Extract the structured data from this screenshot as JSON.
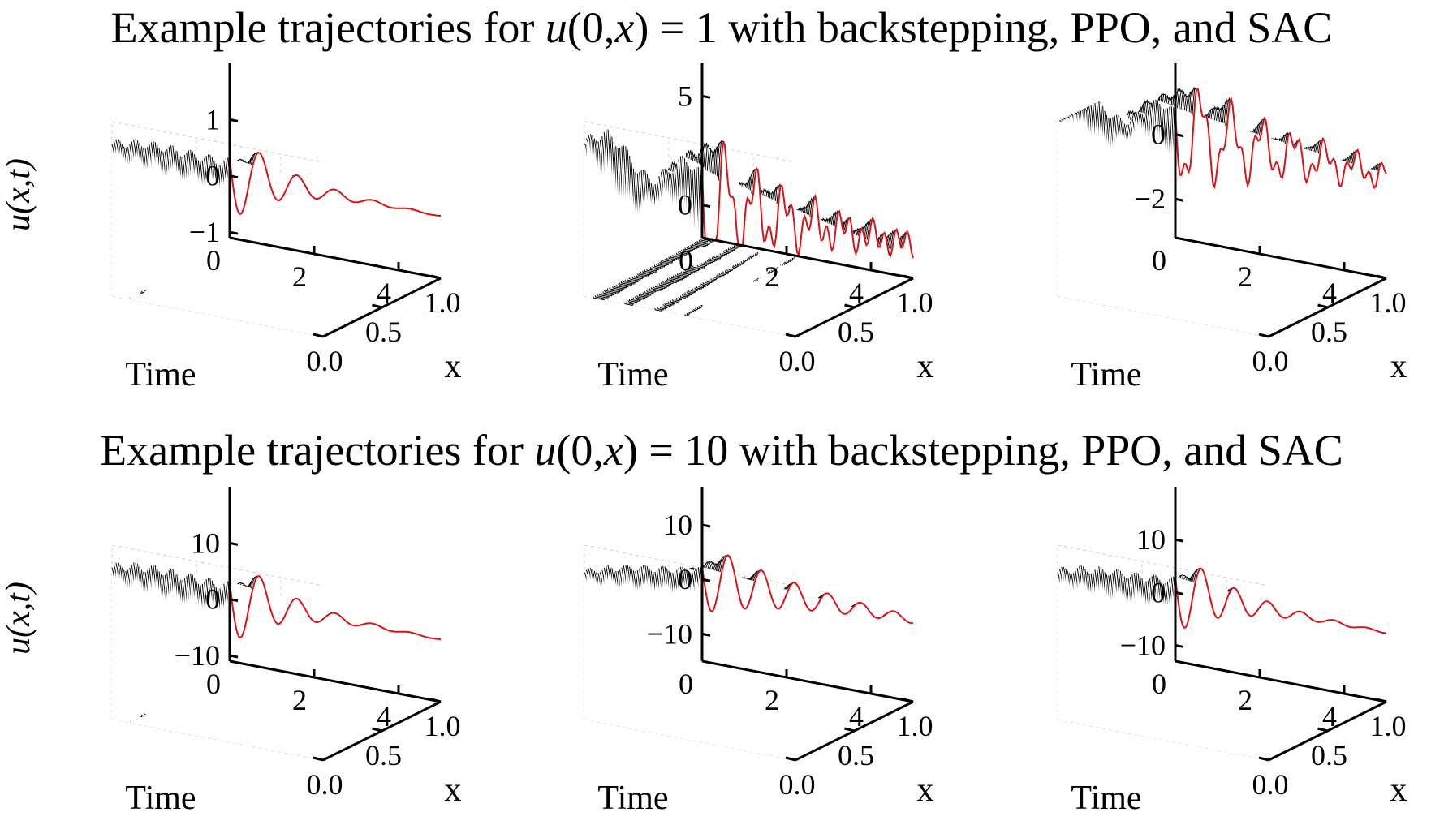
{
  "figure": {
    "row_titles": [
      "Example trajectories for u(0,x) = 1 with backstepping, PPO, and SAC",
      "Example trajectories for u(0,x) = 10 with backstepping, PPO, and SAC"
    ],
    "row_title_parts": [
      {
        "pre": "Example trajectories for ",
        "math": "u",
        "mid": "(0,",
        "math2": "x",
        "post": ") = 1 with backstepping, PPO, and SAC"
      },
      {
        "pre": "Example trajectories for ",
        "math": "u",
        "mid": "(0,",
        "math2": "x",
        "post": ") = 10 with backstepping, PPO, and SAC"
      }
    ]
  },
  "colors": {
    "surface_lines": "#000000",
    "boundary_trajectory": "#d8141a",
    "grid": "#d0d0d0"
  },
  "chart_data": [
    {
      "type": "surface3d",
      "row": 0,
      "col": 0,
      "xlabel": "Time",
      "ylabel": "x",
      "zlabel": "u(x,t)",
      "x_ticks": [
        "0",
        "2",
        "4"
      ],
      "y_ticks": [
        "1.0",
        "0.5",
        "0.0"
      ],
      "z_ticks": [
        "−1",
        "0",
        "1"
      ],
      "xlim": [
        0,
        5
      ],
      "ylim": [
        0,
        1
      ],
      "zlim": [
        -1.1,
        2.0
      ],
      "z_tick_values": [
        -1,
        0,
        1
      ],
      "initial_value": 1,
      "profile": {
        "amp": 1.6,
        "omega": 7.0,
        "decay": 0.9,
        "envelope": "decaying"
      }
    },
    {
      "type": "surface3d",
      "row": 0,
      "col": 1,
      "xlabel": "Time",
      "ylabel": "x",
      "zlabel": "",
      "x_ticks": [
        "0",
        "2",
        "4"
      ],
      "y_ticks": [
        "1.0",
        "0.5",
        "0.0"
      ],
      "z_ticks": [
        "0",
        "5"
      ],
      "xlim": [
        0,
        5
      ],
      "ylim": [
        0,
        1
      ],
      "zlim": [
        -1.5,
        6.5
      ],
      "z_tick_values": [
        0,
        5
      ],
      "initial_value": 1,
      "profile": {
        "amp": 5.5,
        "omega": 9.0,
        "decay": 0.55,
        "envelope": "noisy"
      }
    },
    {
      "type": "surface3d",
      "row": 0,
      "col": 2,
      "xlabel": "Time",
      "ylabel": "x",
      "zlabel": "",
      "x_ticks": [
        "0",
        "2",
        "4"
      ],
      "y_ticks": [
        "1.0",
        "0.5",
        "0.0"
      ],
      "z_ticks": [
        "−2",
        "0"
      ],
      "xlim": [
        0,
        5
      ],
      "ylim": [
        0,
        1
      ],
      "zlim": [
        -3.2,
        2.2
      ],
      "z_tick_values": [
        -2,
        0
      ],
      "initial_value": 1,
      "profile": {
        "amp": 2.8,
        "omega": 8.5,
        "decay": 0.35,
        "envelope": "noisy"
      }
    },
    {
      "type": "surface3d",
      "row": 1,
      "col": 0,
      "xlabel": "Time",
      "ylabel": "x",
      "zlabel": "u(x,t)",
      "x_ticks": [
        "0",
        "2",
        "4"
      ],
      "y_ticks": [
        "1.0",
        "0.5",
        "0.0"
      ],
      "z_ticks": [
        "−10",
        "0",
        "10"
      ],
      "xlim": [
        0,
        5
      ],
      "ylim": [
        0,
        1
      ],
      "zlim": [
        -11,
        20
      ],
      "z_tick_values": [
        -10,
        0,
        10
      ],
      "initial_value": 10,
      "profile": {
        "amp": 16,
        "omega": 7.0,
        "decay": 0.9,
        "envelope": "decaying"
      }
    },
    {
      "type": "surface3d",
      "row": 1,
      "col": 1,
      "xlabel": "Time",
      "ylabel": "x",
      "zlabel": "",
      "x_ticks": [
        "0",
        "2",
        "4"
      ],
      "y_ticks": [
        "1.0",
        "0.5",
        "0.0"
      ],
      "z_ticks": [
        "−10",
        "0",
        "10"
      ],
      "xlim": [
        0,
        5
      ],
      "ylim": [
        0,
        1
      ],
      "zlim": [
        -15,
        17
      ],
      "z_tick_values": [
        -10,
        0,
        10
      ],
      "initial_value": 10,
      "profile": {
        "amp": 12,
        "omega": 8.0,
        "decay": 0.45,
        "envelope": "decaying"
      }
    },
    {
      "type": "surface3d",
      "row": 1,
      "col": 2,
      "xlabel": "Time",
      "ylabel": "x",
      "zlabel": "",
      "x_ticks": [
        "0",
        "2",
        "4"
      ],
      "y_ticks": [
        "1.0",
        "0.5",
        "0.0"
      ],
      "z_ticks": [
        "−10",
        "0",
        "10"
      ],
      "xlim": [
        0,
        5
      ],
      "ylim": [
        0,
        1
      ],
      "zlim": [
        -13,
        20
      ],
      "z_tick_values": [
        -10,
        0,
        10
      ],
      "initial_value": 10,
      "profile": {
        "amp": 15,
        "omega": 8.0,
        "decay": 0.8,
        "envelope": "decaying"
      }
    }
  ]
}
